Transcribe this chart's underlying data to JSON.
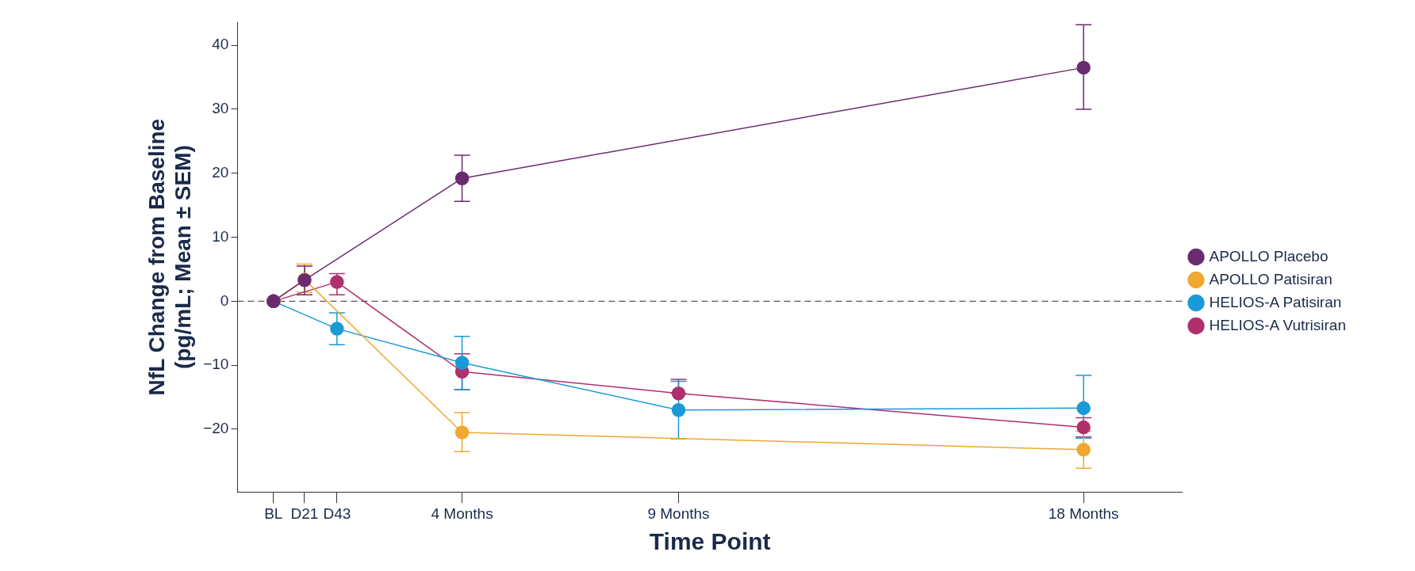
{
  "chart_data": {
    "type": "line",
    "xlabel": "Time Point",
    "ylabel": "NfL Change from Baseline\n(pg/mL; Mean ± SEM)",
    "xlim": [
      -0.8,
      20.2
    ],
    "xticks": [
      {
        "value": 0,
        "label": "BL"
      },
      {
        "value": 0.69,
        "label": "D21"
      },
      {
        "value": 1.41,
        "label": "D43"
      },
      {
        "value": 4.19,
        "label": "4 Months"
      },
      {
        "value": 9,
        "label": "9 Months"
      },
      {
        "value": 18,
        "label": "18 Months"
      }
    ],
    "ylim": [
      -29.8,
      43.6
    ],
    "yticks": [
      -20,
      -10,
      0,
      10,
      20,
      30,
      40
    ],
    "grid": false,
    "legend": "right",
    "marker": "circle",
    "line_style": "solid",
    "ref_lines": [
      {
        "axis": "y",
        "value": 0,
        "color": "#555555",
        "line_style": "dashed"
      }
    ],
    "series": [
      {
        "name": "APOLLO Placebo",
        "color": "#6a2c6e",
        "x": [
          0,
          0.69,
          4.19,
          18
        ],
        "values": [
          0,
          3.3,
          19.2,
          36.5
        ],
        "errors": [
          null,
          [
            1,
            5.5
          ],
          [
            15.6,
            22.8
          ],
          [
            30,
            43.2
          ]
        ]
      },
      {
        "name": "APOLLO Patisiran",
        "color": "#f0a830",
        "x": [
          0,
          0.69,
          4.19,
          18
        ],
        "values": [
          0,
          3.4,
          -20.5,
          -23.2
        ],
        "errors": [
          null,
          [
            1.4,
            5.8
          ],
          [
            -23.5,
            -17.4
          ],
          [
            -26.1,
            -20.3
          ]
        ]
      },
      {
        "name": "HELIOS-A Patisiran",
        "color": "#1a9ad6",
        "x": [
          0,
          1.41,
          4.19,
          9,
          18
        ],
        "values": [
          0,
          -4.3,
          -9.6,
          -17,
          -16.7
        ],
        "errors": [
          null,
          [
            -6.8,
            -1.8
          ],
          [
            -13.8,
            -5.5
          ],
          [
            -21.5,
            -12.5
          ],
          [
            -21.4,
            -11.6
          ]
        ]
      },
      {
        "name": "HELIOS-A Vutrisiran",
        "color": "#b0306e",
        "x": [
          0,
          1.41,
          4.19,
          9,
          18
        ],
        "values": [
          0,
          3,
          -11,
          -14.4,
          -19.7
        ],
        "errors": [
          null,
          [
            1,
            4.3
          ],
          [
            -13.8,
            -8.2
          ],
          [
            -14.4,
            -12.2
          ],
          [
            -21.2,
            -18.2
          ]
        ]
      }
    ]
  }
}
